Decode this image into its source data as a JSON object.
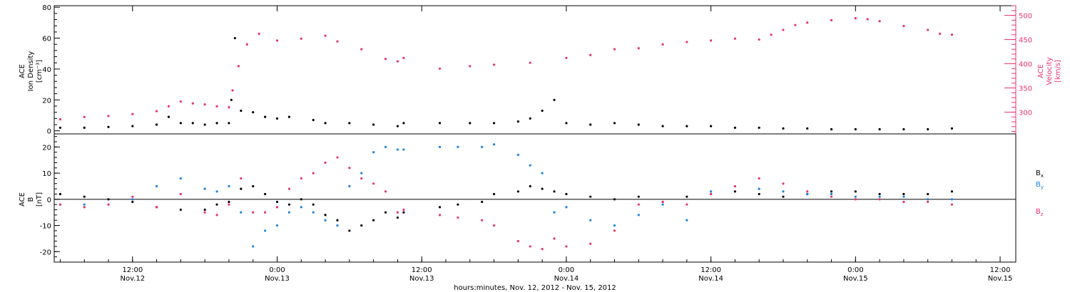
{
  "chart_data": [
    {
      "type": "scatter",
      "panel": "top",
      "left_axis": {
        "label_lines": [
          "ACE",
          "Ion Density",
          "[cm⁻³]"
        ],
        "ticks": [
          0,
          20,
          40,
          60,
          80
        ],
        "ylim": [
          -2,
          81
        ]
      },
      "right_axis": {
        "label_lines": [
          "ACE",
          "Velocity",
          "[km/s]"
        ],
        "ticks": [
          300,
          350,
          400,
          450,
          500
        ],
        "ylim": [
          255,
          520
        ],
        "color": "#e8336b"
      },
      "series": [
        {
          "axis": "right",
          "color": "#e8336b",
          "points": [
            [
              -6,
              285
            ],
            [
              -4,
              290
            ],
            [
              -2,
              292
            ],
            [
              0,
              296
            ],
            [
              2,
              302
            ],
            [
              3,
              312
            ],
            [
              4,
              322
            ],
            [
              5,
              318
            ],
            [
              6,
              316
            ],
            [
              7,
              312
            ],
            [
              8,
              310
            ],
            [
              8.3,
              345
            ],
            [
              8.8,
              395
            ],
            [
              9.5,
              440
            ],
            [
              10.5,
              462
            ],
            [
              12,
              448
            ],
            [
              14,
              452
            ],
            [
              16,
              458
            ],
            [
              17,
              446
            ],
            [
              19,
              430
            ],
            [
              21,
              410
            ],
            [
              22,
              405
            ],
            [
              22.5,
              412
            ],
            [
              25.5,
              390
            ],
            [
              28,
              395
            ],
            [
              30,
              398
            ],
            [
              33,
              402
            ],
            [
              36,
              412
            ],
            [
              38,
              418
            ],
            [
              40,
              430
            ],
            [
              42,
              432
            ],
            [
              44,
              440
            ],
            [
              46,
              445
            ],
            [
              48,
              448
            ],
            [
              50,
              452
            ],
            [
              52,
              450
            ],
            [
              53,
              460
            ],
            [
              54,
              470
            ],
            [
              55,
              480
            ],
            [
              56,
              485
            ],
            [
              58,
              490
            ],
            [
              60,
              494
            ],
            [
              61,
              492
            ],
            [
              62,
              488
            ],
            [
              64,
              478
            ],
            [
              66,
              470
            ],
            [
              67,
              462
            ],
            [
              68,
              460
            ]
          ]
        },
        {
          "axis": "left",
          "color": "#000000",
          "points": [
            [
              -6,
              2
            ],
            [
              -4,
              2
            ],
            [
              -2,
              2.5
            ],
            [
              0,
              3
            ],
            [
              2,
              4
            ],
            [
              3,
              9
            ],
            [
              4,
              5
            ],
            [
              5,
              5
            ],
            [
              6,
              4
            ],
            [
              7,
              5
            ],
            [
              8,
              5
            ],
            [
              8.2,
              20
            ],
            [
              8.5,
              60
            ],
            [
              9,
              13
            ],
            [
              10,
              12
            ],
            [
              11,
              9
            ],
            [
              12,
              8
            ],
            [
              13,
              9
            ],
            [
              15,
              7
            ],
            [
              16,
              5
            ],
            [
              18,
              5
            ],
            [
              20,
              4
            ],
            [
              22,
              3
            ],
            [
              22.5,
              5
            ],
            [
              25.5,
              5
            ],
            [
              28,
              5
            ],
            [
              30,
              5
            ],
            [
              32,
              6
            ],
            [
              33,
              8
            ],
            [
              34,
              13
            ],
            [
              35,
              20
            ],
            [
              36,
              5
            ],
            [
              38,
              4
            ],
            [
              40,
              5
            ],
            [
              42,
              4
            ],
            [
              44,
              3
            ],
            [
              46,
              3
            ],
            [
              48,
              3
            ],
            [
              50,
              2
            ],
            [
              52,
              2
            ],
            [
              54,
              1.5
            ],
            [
              56,
              1.5
            ],
            [
              58,
              1
            ],
            [
              60,
              1
            ],
            [
              62,
              1
            ],
            [
              64,
              1
            ],
            [
              66,
              1
            ],
            [
              68,
              1.5
            ]
          ]
        }
      ]
    },
    {
      "type": "scatter",
      "panel": "bottom",
      "y_axis": {
        "label_lines": [
          "ACE",
          "B",
          "[nT]"
        ],
        "ticks": [
          -20,
          -10,
          0,
          10,
          20
        ],
        "ylim": [
          -24,
          25
        ]
      },
      "zero_line": true,
      "series": [
        {
          "name": "B",
          "subscript": "x",
          "color": "#000000",
          "points": [
            [
              -6,
              2
            ],
            [
              -4,
              1
            ],
            [
              -2,
              0
            ],
            [
              0,
              -1
            ],
            [
              2,
              -3
            ],
            [
              4,
              -4
            ],
            [
              6,
              -4
            ],
            [
              7,
              -2
            ],
            [
              8,
              -1
            ],
            [
              9,
              4
            ],
            [
              10,
              5
            ],
            [
              11,
              2
            ],
            [
              12,
              -1
            ],
            [
              13,
              -2
            ],
            [
              14,
              0
            ],
            [
              15,
              -2
            ],
            [
              16,
              -6
            ],
            [
              17,
              -8
            ],
            [
              18,
              -12
            ],
            [
              19,
              -10
            ],
            [
              20,
              -8
            ],
            [
              21,
              -5
            ],
            [
              22,
              -7
            ],
            [
              22.5,
              -5
            ],
            [
              25.5,
              -3
            ],
            [
              27,
              -2
            ],
            [
              29,
              -1
            ],
            [
              30,
              2
            ],
            [
              32,
              3
            ],
            [
              33,
              5
            ],
            [
              34,
              4
            ],
            [
              35,
              3
            ],
            [
              36,
              2
            ],
            [
              38,
              1
            ],
            [
              40,
              0
            ],
            [
              42,
              1
            ],
            [
              44,
              -1
            ],
            [
              46,
              1
            ],
            [
              48,
              2
            ],
            [
              50,
              3
            ],
            [
              52,
              2
            ],
            [
              54,
              1
            ],
            [
              56,
              2
            ],
            [
              58,
              3
            ],
            [
              60,
              3
            ],
            [
              62,
              2
            ],
            [
              64,
              2
            ],
            [
              66,
              2
            ],
            [
              68,
              3
            ]
          ]
        },
        {
          "name": "B",
          "subscript": "y",
          "color": "#1a82e0",
          "points": [
            [
              -6,
              -2
            ],
            [
              -4,
              -2
            ],
            [
              -2,
              -2
            ],
            [
              0,
              0
            ],
            [
              2,
              5
            ],
            [
              4,
              8
            ],
            [
              6,
              4
            ],
            [
              7,
              3
            ],
            [
              8,
              5
            ],
            [
              9,
              -5
            ],
            [
              10,
              -18
            ],
            [
              11,
              -12
            ],
            [
              12,
              -10
            ],
            [
              13,
              -5
            ],
            [
              14,
              -3
            ],
            [
              15,
              -5
            ],
            [
              16,
              -8
            ],
            [
              17,
              -10
            ],
            [
              18,
              5
            ],
            [
              19,
              10
            ],
            [
              20,
              18
            ],
            [
              21,
              20
            ],
            [
              22,
              19
            ],
            [
              22.5,
              19
            ],
            [
              25.5,
              20
            ],
            [
              27,
              20
            ],
            [
              29,
              20
            ],
            [
              30,
              21
            ],
            [
              32,
              17
            ],
            [
              33,
              13
            ],
            [
              34,
              10
            ],
            [
              35,
              -5
            ],
            [
              36,
              -3
            ],
            [
              38,
              -8
            ],
            [
              40,
              -10
            ],
            [
              42,
              -6
            ],
            [
              44,
              -2
            ],
            [
              46,
              -8
            ],
            [
              48,
              3
            ],
            [
              50,
              5
            ],
            [
              52,
              4
            ],
            [
              54,
              3
            ],
            [
              56,
              2
            ],
            [
              58,
              2
            ],
            [
              60,
              1
            ],
            [
              62,
              1
            ],
            [
              64,
              1
            ],
            [
              66,
              0
            ],
            [
              68,
              0
            ]
          ]
        },
        {
          "name": "B",
          "subscript": "z",
          "color": "#e8336b",
          "points": [
            [
              -6,
              -2
            ],
            [
              -4,
              -3
            ],
            [
              -2,
              -2
            ],
            [
              0,
              1
            ],
            [
              2,
              -3
            ],
            [
              4,
              2
            ],
            [
              6,
              -5
            ],
            [
              7,
              -6
            ],
            [
              8,
              -2
            ],
            [
              9,
              8
            ],
            [
              10,
              -5
            ],
            [
              11,
              -5
            ],
            [
              12,
              -3
            ],
            [
              13,
              4
            ],
            [
              14,
              8
            ],
            [
              15,
              10
            ],
            [
              16,
              14
            ],
            [
              17,
              16
            ],
            [
              18,
              12
            ],
            [
              19,
              8
            ],
            [
              20,
              6
            ],
            [
              21,
              3
            ],
            [
              22,
              -5
            ],
            [
              22.5,
              -4
            ],
            [
              25.5,
              -6
            ],
            [
              27,
              -7
            ],
            [
              29,
              -8
            ],
            [
              30,
              -10
            ],
            [
              32,
              -16
            ],
            [
              33,
              -18
            ],
            [
              34,
              -19
            ],
            [
              35,
              -15
            ],
            [
              36,
              -18
            ],
            [
              38,
              -17
            ],
            [
              40,
              -12
            ],
            [
              42,
              -2
            ],
            [
              44,
              -1
            ],
            [
              46,
              -2
            ],
            [
              48,
              2
            ],
            [
              50,
              5
            ],
            [
              52,
              8
            ],
            [
              54,
              6
            ],
            [
              56,
              3
            ],
            [
              58,
              1
            ],
            [
              60,
              0
            ],
            [
              62,
              0
            ],
            [
              64,
              -1
            ],
            [
              66,
              -1
            ],
            [
              68,
              -2
            ]
          ]
        }
      ],
      "legend_placement": "right"
    }
  ],
  "x_axis": {
    "ticks": [
      {
        "hours": 0,
        "time": "12:00",
        "date": "Nov.12"
      },
      {
        "hours": 12,
        "time": "0:00",
        "date": "Nov.13"
      },
      {
        "hours": 24,
        "time": "12:00",
        "date": "Nov.13"
      },
      {
        "hours": 36,
        "time": "0:00",
        "date": "Nov.14"
      },
      {
        "hours": 48,
        "time": "12:00",
        "date": "Nov.14"
      },
      {
        "hours": 60,
        "time": "0:00",
        "date": "Nov.15"
      },
      {
        "hours": 72,
        "time": "12:00",
        "date": "Nov.15"
      }
    ],
    "xlim": [
      -6.5,
      73.3
    ],
    "label": "hours:minutes, Nov. 12, 2012 - Nov. 15, 2012"
  },
  "colors": {
    "black": "#000000",
    "pink": "#e8336b",
    "blue": "#1a82e0"
  }
}
